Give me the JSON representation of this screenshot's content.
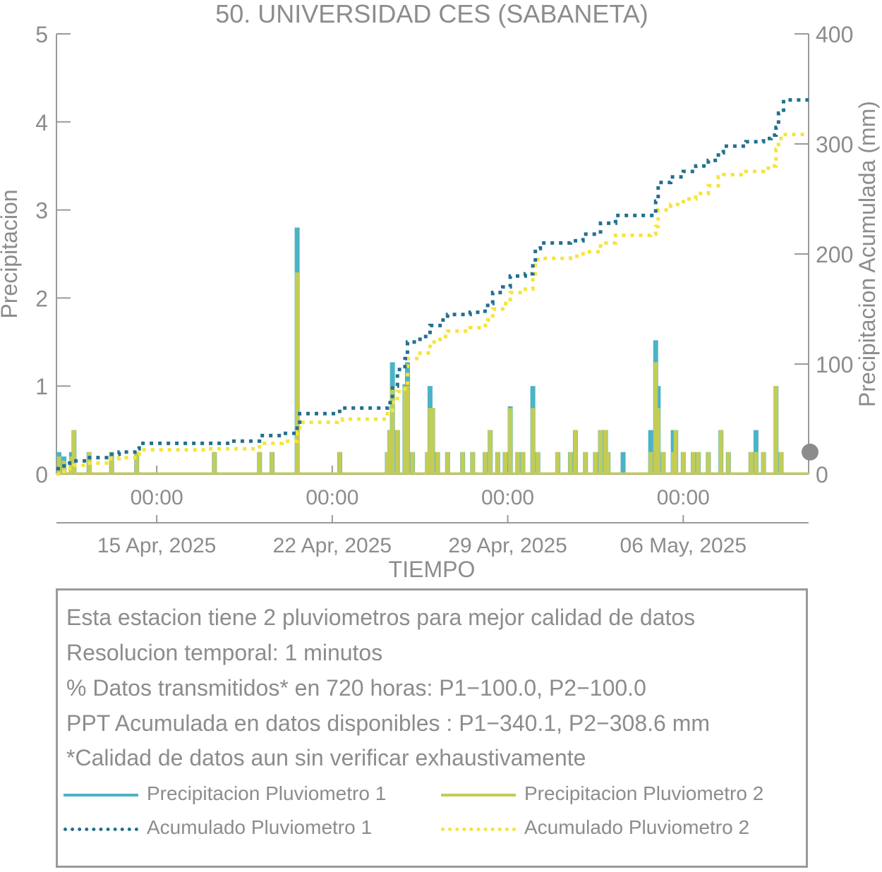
{
  "chart_data": {
    "type": "bar+line",
    "title": "50. UNIVERSIDAD CES (SABANETA)",
    "xlabel": "TIEMPO",
    "ylabel_left": "Precipitacion",
    "ylabel_right": "Precipitacion Acumulada (mm)",
    "ylim_left": [
      0,
      5
    ],
    "ylim_right": [
      0,
      400
    ],
    "yticks_left": [
      "0",
      "1",
      "2",
      "3",
      "4",
      "5"
    ],
    "yticks_right": [
      "0",
      "100",
      "200",
      "300",
      "400"
    ],
    "xlim_days": [
      0,
      30
    ],
    "xticks": [
      {
        "day": 4,
        "time": "00:00",
        "date": "15 Apr, 2025"
      },
      {
        "day": 11,
        "time": "00:00",
        "date": "22 Apr, 2025"
      },
      {
        "day": 18,
        "time": "00:00",
        "date": "29 Apr, 2025"
      },
      {
        "day": 25,
        "time": "00:00",
        "date": "06 May, 2025"
      }
    ],
    "series": [
      {
        "name": "Precipitacion Pluviometro 1",
        "kind": "bar",
        "color": "#4bb3c5",
        "points": [
          [
            0.1,
            0.25
          ],
          [
            0.3,
            0.2
          ],
          [
            0.6,
            0.25
          ],
          [
            0.7,
            0.5
          ],
          [
            1.3,
            0.25
          ],
          [
            2.2,
            0.25
          ],
          [
            3.2,
            0.25
          ],
          [
            6.3,
            0.25
          ],
          [
            8.1,
            0.25
          ],
          [
            8.6,
            0.25
          ],
          [
            9.6,
            2.8
          ],
          [
            11.3,
            0.25
          ],
          [
            13.2,
            0.25
          ],
          [
            13.3,
            0.5
          ],
          [
            13.4,
            1.27
          ],
          [
            13.6,
            0.5
          ],
          [
            13.9,
            1.02
          ],
          [
            14.0,
            1.27
          ],
          [
            14.2,
            0.25
          ],
          [
            14.8,
            0.25
          ],
          [
            14.9,
            1.0
          ],
          [
            15.0,
            0.75
          ],
          [
            15.2,
            0.25
          ],
          [
            15.6,
            0.25
          ],
          [
            16.2,
            0.25
          ],
          [
            16.6,
            0.25
          ],
          [
            17.1,
            0.25
          ],
          [
            17.3,
            0.5
          ],
          [
            17.6,
            0.25
          ],
          [
            17.9,
            0.25
          ],
          [
            18.1,
            0.77
          ],
          [
            18.4,
            0.25
          ],
          [
            18.6,
            0.25
          ],
          [
            19.0,
            1.0
          ],
          [
            19.2,
            0.25
          ],
          [
            20.0,
            0.25
          ],
          [
            20.5,
            0.25
          ],
          [
            20.7,
            0.5
          ],
          [
            21.1,
            0.25
          ],
          [
            21.5,
            0.25
          ],
          [
            21.7,
            0.5
          ],
          [
            21.9,
            0.5
          ],
          [
            22.0,
            0.25
          ],
          [
            22.6,
            0.25
          ],
          [
            23.7,
            0.5
          ],
          [
            23.9,
            1.52
          ],
          [
            24.0,
            1.0
          ],
          [
            24.2,
            0.25
          ],
          [
            24.6,
            0.5
          ],
          [
            24.7,
            0.5
          ],
          [
            25.0,
            0.25
          ],
          [
            25.4,
            0.25
          ],
          [
            25.6,
            0.25
          ],
          [
            26.0,
            0.25
          ],
          [
            26.5,
            0.5
          ],
          [
            26.8,
            0.25
          ],
          [
            27.7,
            0.25
          ],
          [
            27.9,
            0.5
          ],
          [
            28.2,
            0.25
          ],
          [
            28.7,
            1.0
          ],
          [
            28.9,
            0.25
          ]
        ]
      },
      {
        "name": "Precipitacion Pluviometro 2",
        "kind": "bar",
        "color": "#c4cc55",
        "points": [
          [
            0.1,
            0.2
          ],
          [
            0.3,
            0.15
          ],
          [
            0.6,
            0.2
          ],
          [
            0.7,
            0.5
          ],
          [
            1.3,
            0.25
          ],
          [
            2.2,
            0.25
          ],
          [
            3.2,
            0.25
          ],
          [
            6.3,
            0.25
          ],
          [
            8.1,
            0.25
          ],
          [
            8.6,
            0.25
          ],
          [
            9.6,
            2.29
          ],
          [
            11.3,
            0.25
          ],
          [
            13.2,
            0.25
          ],
          [
            13.3,
            0.5
          ],
          [
            13.4,
            1.0
          ],
          [
            13.6,
            0.5
          ],
          [
            13.9,
            1.0
          ],
          [
            14.0,
            1.0
          ],
          [
            14.2,
            0.25
          ],
          [
            14.8,
            0.25
          ],
          [
            14.9,
            0.75
          ],
          [
            15.0,
            0.75
          ],
          [
            15.2,
            0.25
          ],
          [
            15.6,
            0.25
          ],
          [
            16.2,
            0.25
          ],
          [
            16.6,
            0.25
          ],
          [
            17.1,
            0.25
          ],
          [
            17.3,
            0.5
          ],
          [
            17.6,
            0.25
          ],
          [
            17.9,
            0.25
          ],
          [
            18.1,
            0.75
          ],
          [
            18.4,
            0.25
          ],
          [
            18.6,
            0.25
          ],
          [
            19.0,
            0.75
          ],
          [
            19.2,
            0.25
          ],
          [
            20.0,
            0.25
          ],
          [
            20.5,
            0.25
          ],
          [
            20.7,
            0.5
          ],
          [
            21.1,
            0.25
          ],
          [
            21.5,
            0.25
          ],
          [
            21.7,
            0.5
          ],
          [
            21.9,
            0.5
          ],
          [
            22.0,
            0.25
          ],
          [
            22.6,
            0.0
          ],
          [
            23.7,
            0.25
          ],
          [
            23.9,
            1.27
          ],
          [
            24.0,
            0.75
          ],
          [
            24.2,
            0.25
          ],
          [
            24.6,
            0.25
          ],
          [
            24.7,
            0.5
          ],
          [
            25.0,
            0.25
          ],
          [
            25.4,
            0.25
          ],
          [
            25.6,
            0.25
          ],
          [
            26.0,
            0.25
          ],
          [
            26.5,
            0.5
          ],
          [
            26.8,
            0.25
          ],
          [
            27.7,
            0.25
          ],
          [
            27.9,
            0.25
          ],
          [
            28.2,
            0.25
          ],
          [
            28.7,
            1.0
          ],
          [
            28.9,
            0.25
          ]
        ]
      },
      {
        "name": "Acumulado Pluviometro 1",
        "kind": "line",
        "color": "#23708f",
        "points": [
          [
            0,
            5
          ],
          [
            0.3,
            10
          ],
          [
            0.7,
            12
          ],
          [
            1.2,
            15
          ],
          [
            2.0,
            18
          ],
          [
            2.5,
            20
          ],
          [
            3.2,
            23
          ],
          [
            3.3,
            28
          ],
          [
            5.0,
            28
          ],
          [
            6.0,
            28
          ],
          [
            7.0,
            30
          ],
          [
            8.0,
            30
          ],
          [
            8.1,
            35
          ],
          [
            9.0,
            37
          ],
          [
            9.5,
            37
          ],
          [
            9.6,
            45
          ],
          [
            9.7,
            55
          ],
          [
            11.2,
            57
          ],
          [
            11.4,
            60
          ],
          [
            13.0,
            60
          ],
          [
            13.2,
            65
          ],
          [
            13.4,
            80
          ],
          [
            13.6,
            95
          ],
          [
            13.9,
            105
          ],
          [
            14.0,
            120
          ],
          [
            14.5,
            125
          ],
          [
            14.9,
            135
          ],
          [
            15.3,
            140
          ],
          [
            15.6,
            145
          ],
          [
            16.5,
            147
          ],
          [
            17.0,
            148
          ],
          [
            17.2,
            155
          ],
          [
            17.4,
            165
          ],
          [
            17.8,
            170
          ],
          [
            18.1,
            180
          ],
          [
            18.7,
            182
          ],
          [
            19.0,
            192
          ],
          [
            19.1,
            205
          ],
          [
            19.3,
            210
          ],
          [
            20.5,
            212
          ],
          [
            21.0,
            218
          ],
          [
            21.6,
            220
          ],
          [
            21.7,
            228
          ],
          [
            22.3,
            235
          ],
          [
            23.0,
            235
          ],
          [
            23.7,
            235
          ],
          [
            23.9,
            248
          ],
          [
            24.0,
            265
          ],
          [
            24.5,
            270
          ],
          [
            25.0,
            275
          ],
          [
            25.5,
            280
          ],
          [
            26.0,
            285
          ],
          [
            26.4,
            292
          ],
          [
            26.6,
            298
          ],
          [
            27.5,
            302
          ],
          [
            28.2,
            305
          ],
          [
            28.5,
            308
          ],
          [
            28.7,
            315
          ],
          [
            28.8,
            328
          ],
          [
            29.0,
            340
          ],
          [
            30.0,
            340
          ]
        ]
      },
      {
        "name": "Acumulado Pluviometro 2",
        "kind": "line",
        "color": "#f5e43b",
        "points": [
          [
            0,
            0
          ],
          [
            0.3,
            5
          ],
          [
            0.7,
            8
          ],
          [
            1.2,
            10
          ],
          [
            2.0,
            14
          ],
          [
            2.5,
            15
          ],
          [
            3.2,
            18
          ],
          [
            3.3,
            22
          ],
          [
            6.0,
            23
          ],
          [
            8.0,
            23
          ],
          [
            8.1,
            28
          ],
          [
            9.0,
            30
          ],
          [
            9.5,
            30
          ],
          [
            9.6,
            38
          ],
          [
            9.7,
            47
          ],
          [
            11.2,
            49
          ],
          [
            11.4,
            50
          ],
          [
            13.0,
            50
          ],
          [
            13.2,
            55
          ],
          [
            13.4,
            65
          ],
          [
            13.6,
            75
          ],
          [
            13.9,
            80
          ],
          [
            14.0,
            105
          ],
          [
            14.5,
            110
          ],
          [
            14.9,
            120
          ],
          [
            15.3,
            125
          ],
          [
            15.6,
            130
          ],
          [
            16.5,
            133
          ],
          [
            17.0,
            135
          ],
          [
            17.2,
            140
          ],
          [
            17.4,
            150
          ],
          [
            17.8,
            155
          ],
          [
            18.1,
            165
          ],
          [
            18.7,
            168
          ],
          [
            19.0,
            180
          ],
          [
            19.1,
            195
          ],
          [
            19.3,
            196
          ],
          [
            20.5,
            198
          ],
          [
            21.0,
            202
          ],
          [
            21.6,
            205
          ],
          [
            21.7,
            210
          ],
          [
            22.3,
            217
          ],
          [
            23.0,
            217
          ],
          [
            23.7,
            218
          ],
          [
            23.9,
            225
          ],
          [
            24.0,
            240
          ],
          [
            24.5,
            245
          ],
          [
            25.0,
            250
          ],
          [
            25.5,
            255
          ],
          [
            26.0,
            262
          ],
          [
            26.4,
            270
          ],
          [
            26.6,
            272
          ],
          [
            27.5,
            275
          ],
          [
            28.2,
            278
          ],
          [
            28.5,
            280
          ],
          [
            28.7,
            295
          ],
          [
            28.8,
            305
          ],
          [
            29.0,
            308.6
          ],
          [
            30.0,
            308.6
          ]
        ]
      }
    ],
    "end_marker_value": 20
  },
  "info": {
    "lines": [
      "Esta estacion tiene 2 pluviometros para mejor calidad de datos",
      "Resolucion temporal: 1 minutos",
      "% Datos transmitidos* en 720 horas: P1−100.0, P2−100.0",
      "PPT Acumulada en datos disponibles : P1−340.1, P2−308.6 mm",
      "*Calidad de datos aun sin verificar exhaustivamente"
    ],
    "legend": [
      {
        "label": "Precipitacion Pluviometro 1",
        "style": "solid",
        "color": "#4bb3c5"
      },
      {
        "label": "Precipitacion Pluviometro 2",
        "style": "solid",
        "color": "#c4cc55"
      },
      {
        "label": "Acumulado Pluviometro 1",
        "style": "dotted",
        "color": "#23708f"
      },
      {
        "label": "Acumulado Pluviometro 2",
        "style": "dotted",
        "color": "#f5e43b"
      }
    ]
  }
}
